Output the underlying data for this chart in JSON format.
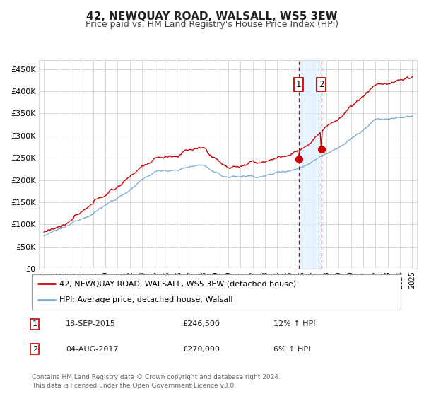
{
  "title": "42, NEWQUAY ROAD, WALSALL, WS5 3EW",
  "subtitle": "Price paid vs. HM Land Registry's House Price Index (HPI)",
  "ylim": [
    0,
    470000
  ],
  "yticks": [
    0,
    50000,
    100000,
    150000,
    200000,
    250000,
    300000,
    350000,
    400000,
    450000
  ],
  "ytick_labels": [
    "£0",
    "£50K",
    "£100K",
    "£150K",
    "£200K",
    "£250K",
    "£300K",
    "£350K",
    "£400K",
    "£450K"
  ],
  "hpi_color": "#7bafd4",
  "price_color": "#cc0000",
  "span_color": "#ddeeff",
  "marker1_year": 2015.71,
  "marker2_year": 2017.59,
  "marker1_label": "1",
  "marker2_label": "2",
  "marker1_price": 246500,
  "marker2_price": 270000,
  "legend1": "42, NEWQUAY ROAD, WALSALL, WS5 3EW (detached house)",
  "legend2": "HPI: Average price, detached house, Walsall",
  "table_row1_num": "1",
  "table_row1_date": "18-SEP-2015",
  "table_row1_price": "£246,500",
  "table_row1_hpi": "12% ↑ HPI",
  "table_row2_num": "2",
  "table_row2_date": "04-AUG-2017",
  "table_row2_price": "£270,000",
  "table_row2_hpi": "6% ↑ HPI",
  "footer": "Contains HM Land Registry data © Crown copyright and database right 2024.\nThis data is licensed under the Open Government Licence v3.0.",
  "background_color": "#ffffff",
  "grid_color": "#cccccc",
  "title_fontsize": 11,
  "subtitle_fontsize": 9
}
